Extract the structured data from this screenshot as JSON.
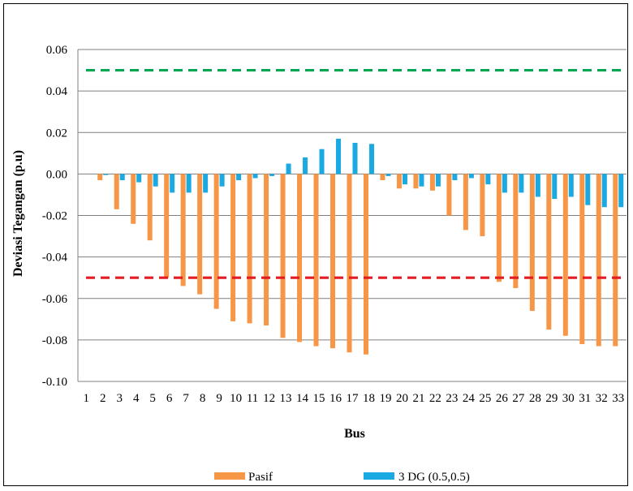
{
  "chart_data": {
    "type": "bar",
    "title": "",
    "xlabel": "Bus",
    "ylabel": "Deviasi Tegangan (p.u)",
    "ylim": [
      -0.1,
      0.06
    ],
    "yticks": [
      0.06,
      0.04,
      0.02,
      0.0,
      -0.02,
      -0.04,
      -0.06,
      -0.08,
      -0.1
    ],
    "ytick_labels": [
      "0.06",
      "0.04",
      "0.02",
      "0.00",
      "-0.02",
      "-0.04",
      "-0.06",
      "-0.08",
      "-0.10"
    ],
    "grid": true,
    "legend_position": "bottom",
    "categories": [
      "1",
      "2",
      "3",
      "4",
      "5",
      "6",
      "7",
      "8",
      "9",
      "10",
      "11",
      "12",
      "13",
      "14",
      "15",
      "16",
      "17",
      "18",
      "19",
      "20",
      "21",
      "22",
      "23",
      "24",
      "25",
      "26",
      "27",
      "28",
      "29",
      "30",
      "31",
      "32",
      "33"
    ],
    "series": [
      {
        "name": "Pasif",
        "color": "#F79646",
        "values": [
          0,
          -0.003,
          -0.017,
          -0.024,
          -0.032,
          -0.05,
          -0.054,
          -0.058,
          -0.065,
          -0.071,
          -0.072,
          -0.073,
          -0.079,
          -0.081,
          -0.083,
          -0.084,
          -0.086,
          -0.087,
          -0.003,
          -0.007,
          -0.007,
          -0.008,
          -0.02,
          -0.027,
          -0.03,
          -0.052,
          -0.055,
          -0.066,
          -0.075,
          -0.078,
          -0.082,
          -0.083,
          -0.083
        ]
      },
      {
        "name": "3 DG (0.5,0.5)",
        "color": "#1BA9E1",
        "values": [
          0,
          -0.0005,
          -0.003,
          -0.004,
          -0.006,
          -0.009,
          -0.009,
          -0.009,
          -0.006,
          -0.003,
          -0.002,
          -0.001,
          0.005,
          0.008,
          0.012,
          0.017,
          0.015,
          0.0145,
          -0.001,
          -0.005,
          -0.006,
          -0.006,
          -0.003,
          -0.002,
          -0.005,
          -0.009,
          -0.009,
          -0.011,
          -0.012,
          -0.011,
          -0.015,
          -0.016,
          -0.016
        ]
      }
    ],
    "reference_lines": [
      {
        "value": 0.05,
        "color": "#00A651",
        "style": "dashed"
      },
      {
        "value": -0.05,
        "color": "#E31B23",
        "style": "dashed"
      }
    ]
  }
}
